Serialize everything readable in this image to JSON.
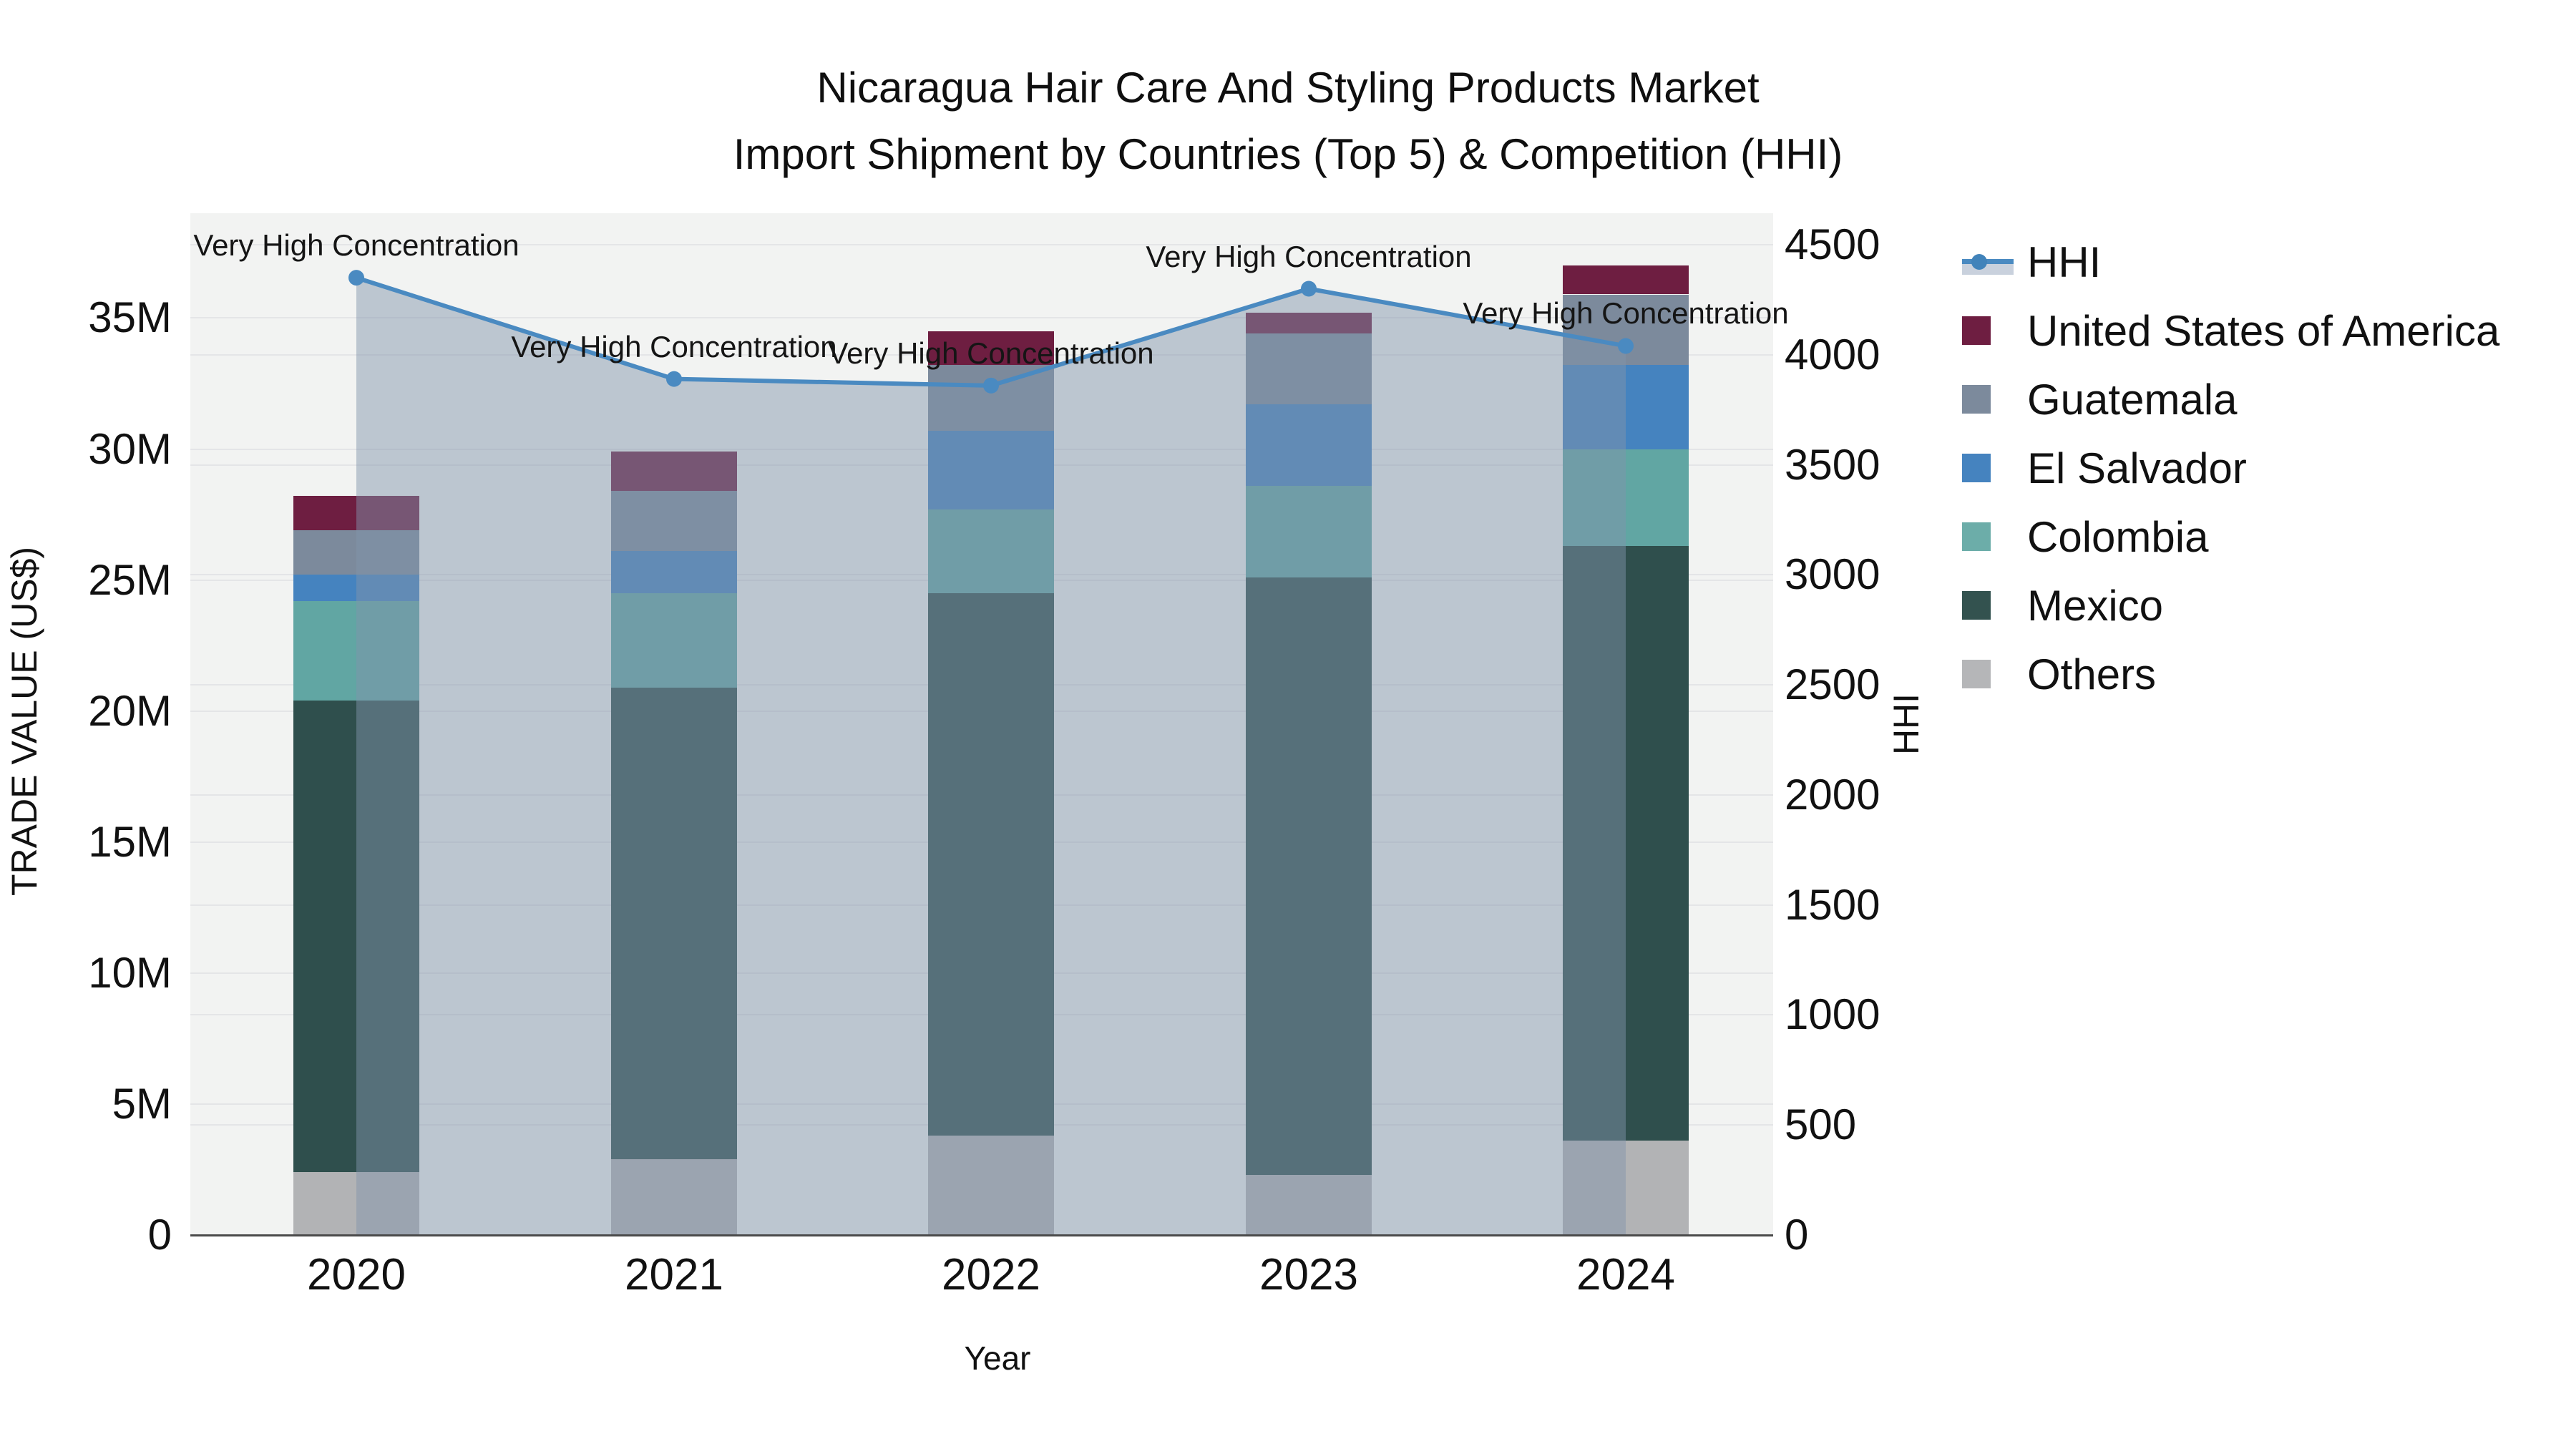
{
  "title": {
    "line1": "Nicaragua Hair Care And Styling Products Market",
    "line2": "Import Shipment by Countries (Top 5) & Competition (HHI)"
  },
  "axes": {
    "left": {
      "title": "TRADE VALUE (US$)",
      "tick_labels": [
        "0",
        "5M",
        "10M",
        "15M",
        "20M",
        "25M",
        "30M",
        "35M"
      ],
      "tick_values_musd": [
        0,
        5,
        10,
        15,
        20,
        25,
        30,
        35
      ],
      "range_musd": [
        0,
        39
      ]
    },
    "right": {
      "title": "HHI",
      "tick_labels": [
        "0",
        "500",
        "1000",
        "1500",
        "2000",
        "2500",
        "3000",
        "3500",
        "4000",
        "4500"
      ],
      "tick_values": [
        0,
        500,
        1000,
        1500,
        2000,
        2500,
        3000,
        3500,
        4000,
        4500
      ],
      "range": [
        0,
        4500
      ]
    },
    "x": {
      "title": "Year",
      "categories": [
        "2020",
        "2021",
        "2022",
        "2023",
        "2024"
      ]
    }
  },
  "chart_data": {
    "type": "stacked-bar+line",
    "categories": [
      "2020",
      "2021",
      "2022",
      "2023",
      "2024"
    ],
    "value_unit": "million US$",
    "series": [
      {
        "name": "Others",
        "color": "#b2b3b5",
        "values": [
          2.4,
          2.9,
          3.8,
          2.3,
          3.6
        ]
      },
      {
        "name": "Mexico",
        "color": "#2f4f4d",
        "values": [
          18.0,
          18.0,
          20.7,
          22.8,
          22.7
        ]
      },
      {
        "name": "Colombia",
        "color": "#61a6a3",
        "values": [
          3.8,
          3.6,
          3.2,
          3.5,
          3.7
        ]
      },
      {
        "name": "El Salvador",
        "color": "#4583bf",
        "values": [
          1.0,
          1.6,
          3.0,
          3.1,
          3.2
        ]
      },
      {
        "name": "Guatemala",
        "color": "#7c8a9c",
        "values": [
          1.7,
          2.3,
          2.5,
          2.7,
          2.7
        ]
      },
      {
        "name": "United States of America",
        "color": "#6e1e41",
        "values": [
          1.3,
          1.5,
          1.3,
          0.8,
          1.1
        ]
      }
    ],
    "totals_musd": [
      28.2,
      29.9,
      34.5,
      35.2,
      37.0
    ],
    "line_series": {
      "name": "HHI",
      "axis": "right",
      "color": "#4a8ac1",
      "area_fill": "rgba(130,148,172,0.48)",
      "values": [
        4350,
        3890,
        3860,
        4300,
        4040
      ]
    },
    "annotations": [
      {
        "category": "2020",
        "text": "Very High Concentration"
      },
      {
        "category": "2021",
        "text": "Very High Concentration"
      },
      {
        "category": "2022",
        "text": "Very High Concentration"
      },
      {
        "category": "2023",
        "text": "Very High Concentration"
      },
      {
        "category": "2024",
        "text": "Very High Concentration"
      }
    ],
    "legend_position": "right",
    "grid": true
  },
  "legend": {
    "items": [
      {
        "label": "HHI",
        "type": "line",
        "color": "#4a8ac1"
      },
      {
        "label": "United States of America",
        "type": "swatch",
        "color": "#6e1e41"
      },
      {
        "label": "Guatemala",
        "type": "swatch",
        "color": "#7c8a9c"
      },
      {
        "label": "El Salvador",
        "type": "swatch",
        "color": "#4583bf"
      },
      {
        "label": "Colombia",
        "type": "swatch",
        "color": "#6cada9"
      },
      {
        "label": "Mexico",
        "type": "swatch",
        "color": "#33524f"
      },
      {
        "label": "Others",
        "type": "swatch",
        "color": "#b5b6b8"
      }
    ]
  },
  "colors": {
    "plot_bg": "#f2f3f2",
    "grid": "#e4e5e7",
    "axis_line": "#4a4a4a",
    "text": "#111111"
  }
}
